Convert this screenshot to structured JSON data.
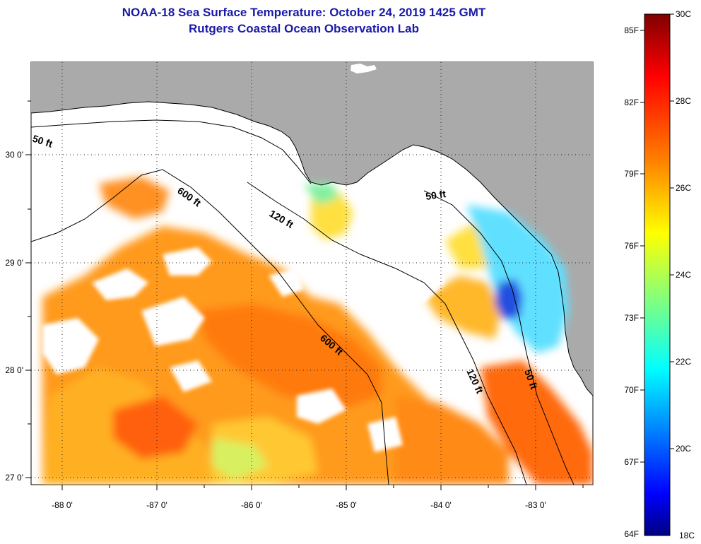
{
  "header": {
    "title": "NOAA-18 Sea Surface Temperature:  October 24, 2019 1425 GMT",
    "subtitle": "Rutgers Coastal Ocean Observation Lab"
  },
  "axes": {
    "lon_ticks": [
      "-88 0'",
      "-87 0'",
      "-86 0'",
      "-85 0'",
      "-84 0'",
      "-83 0'"
    ],
    "lat_ticks": [
      "30 0'",
      "29 0'",
      "28 0'",
      "27 0'"
    ]
  },
  "isobaths": [
    {
      "label": "50 ft"
    },
    {
      "label": "600 ft"
    },
    {
      "label": "120 ft"
    },
    {
      "label": "50 ft"
    },
    {
      "label": "600 ft"
    },
    {
      "label": "120 ft"
    },
    {
      "label": "50 ft"
    }
  ],
  "colorbar": {
    "f_labels": [
      "85F",
      "82F",
      "79F",
      "76F",
      "73F",
      "70F",
      "67F",
      "64F"
    ],
    "c_labels": [
      "30C",
      "28C",
      "26C",
      "24C",
      "22C",
      "20C",
      "18C"
    ],
    "colors": [
      "#800000",
      "#ff0000",
      "#ff8000",
      "#ffff00",
      "#80ff80",
      "#00ffff",
      "#0080ff",
      "#0000ff",
      "#000080"
    ]
  },
  "colors": {
    "land": "#aaaaaa",
    "cloud": "#ffffff",
    "title": "#1a1aa8"
  }
}
